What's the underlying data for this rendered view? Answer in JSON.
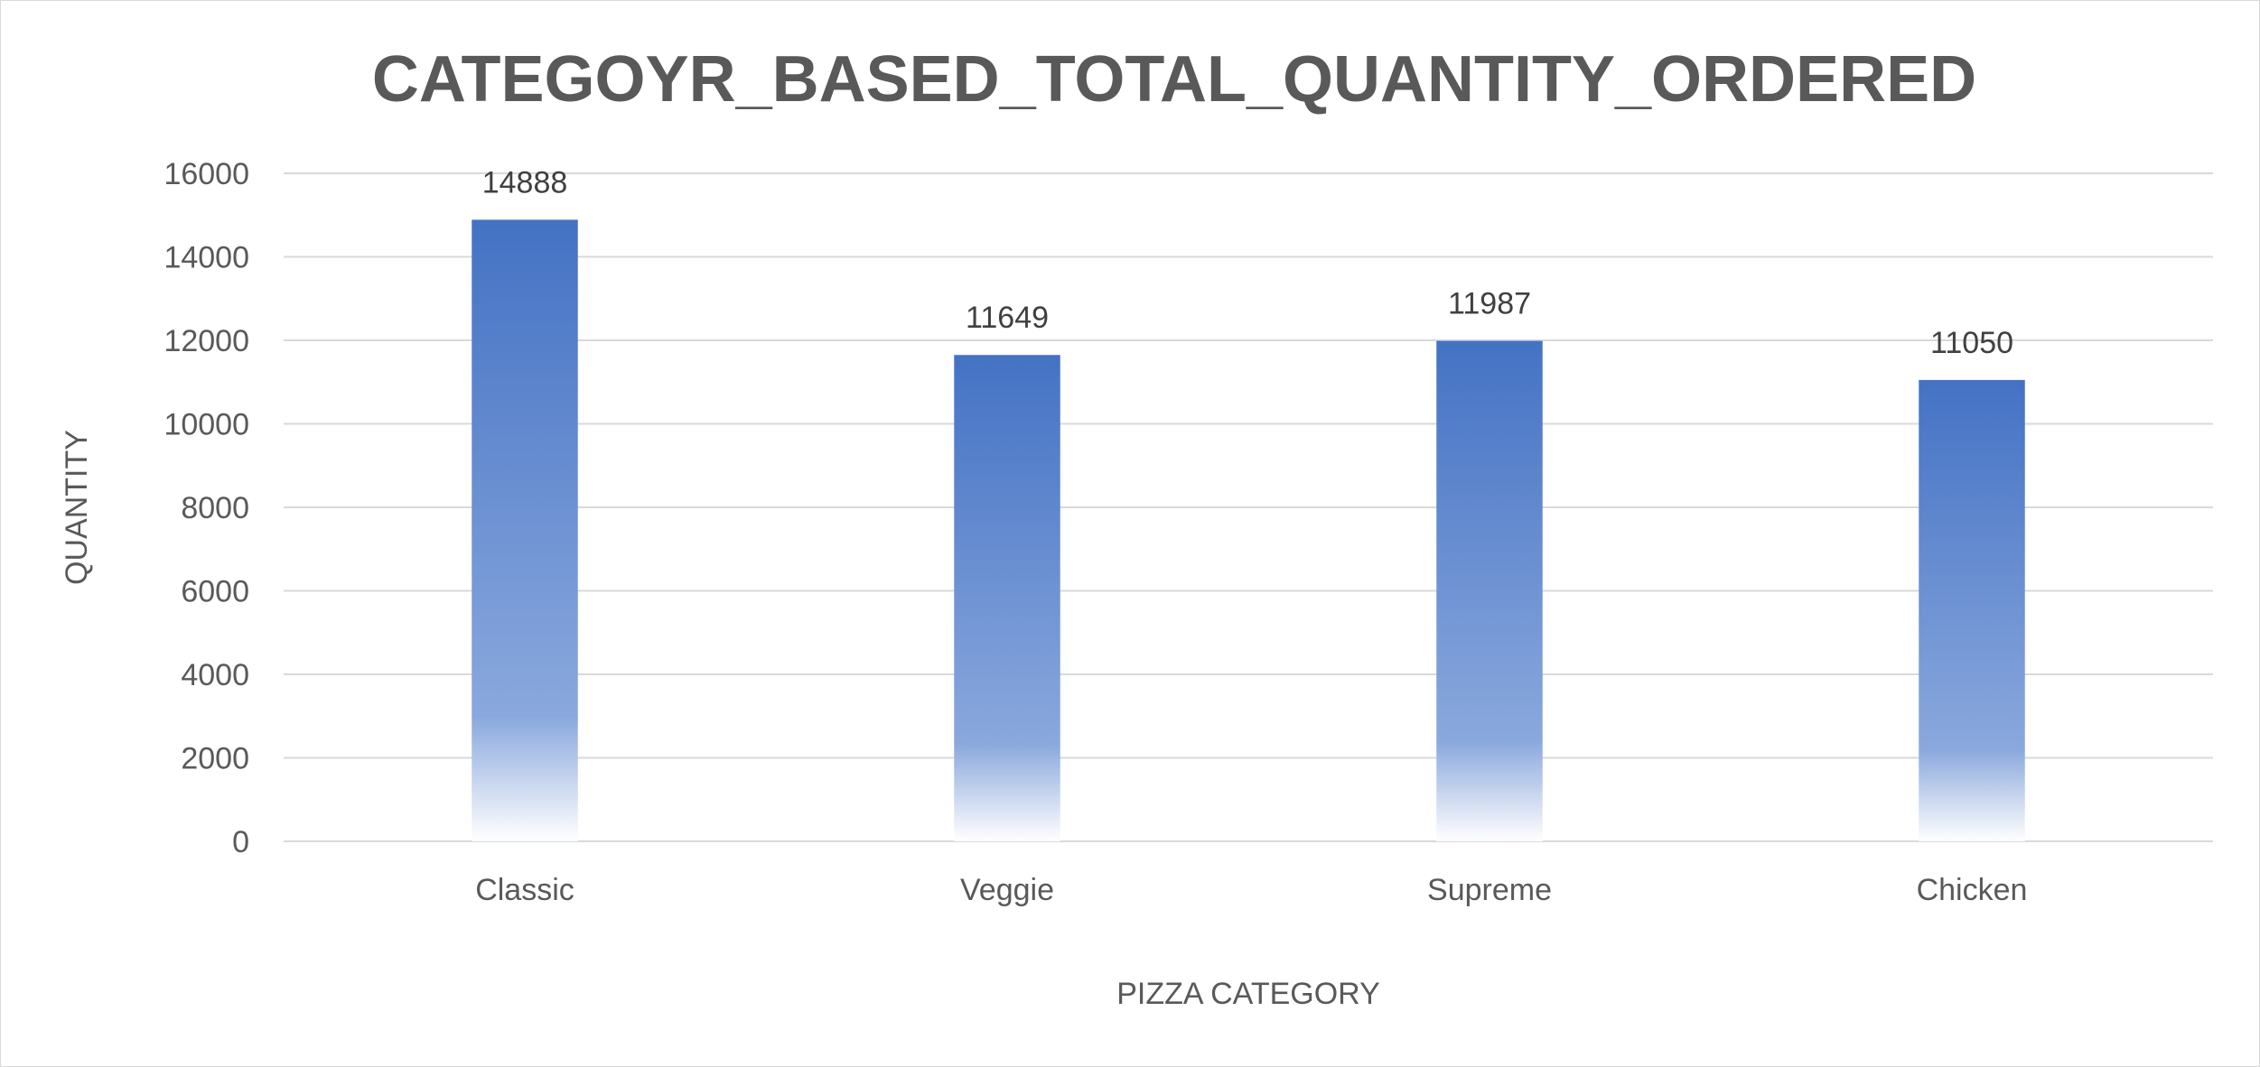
{
  "chart_data": {
    "type": "bar",
    "title": "CATEGOYR_BASED_TOTAL_QUANTITY_ORDERED",
    "xlabel": "PIZZA CATEGORY",
    "ylabel": "QUANTITY",
    "categories": [
      "Classic",
      "Veggie",
      "Supreme",
      "Chicken"
    ],
    "values": [
      14888,
      11649,
      11987,
      11050
    ],
    "data_labels": [
      "14888",
      "11649",
      "11987",
      "11050"
    ],
    "ylim": [
      0,
      16000
    ],
    "yticks": [
      0,
      2000,
      4000,
      6000,
      8000,
      10000,
      12000,
      14000,
      16000
    ],
    "ytick_labels": [
      "0",
      "2000",
      "4000",
      "6000",
      "8000",
      "10000",
      "12000",
      "14000",
      "16000"
    ],
    "grid": true,
    "legend": "none",
    "bar_color_top": "#4472C4",
    "bar_color_bottom": "#FFFFFF",
    "bar_fill": "gradient"
  }
}
